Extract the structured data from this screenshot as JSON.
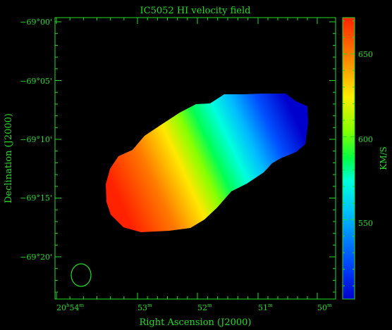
{
  "chart_data": {
    "type": "heatmap",
    "title": "IC5052   HI velocity field",
    "xlabel": "Right Ascension (J2000)",
    "ylabel": "Declination (J2000)",
    "colorbar_label": "KM/S",
    "x_ticks": [
      {
        "h": "20",
        "m": "54"
      },
      {
        "h": "",
        "m": "53"
      },
      {
        "h": "",
        "m": "52"
      },
      {
        "h": "",
        "m": "51"
      },
      {
        "h": "",
        "m": "50"
      }
    ],
    "y_ticks": [
      "−69°00'",
      "−69°05'",
      "−69°10'",
      "−69°15'",
      "−69°20'"
    ],
    "colorbar_ticks": [
      550,
      600,
      650
    ],
    "colorbar_range": [
      502,
      672
    ],
    "colormap": [
      "#0000cc",
      "#0044ff",
      "#00bbff",
      "#00ffdd",
      "#00ff44",
      "#88ff00",
      "#ffee00",
      "#ff8800",
      "#ff2200"
    ],
    "velocity_field": {
      "approaching_side_kms": 508,
      "receding_side_kms": 668,
      "systemic_kms": 590
    },
    "beam": "ellipse",
    "axis_color": "#22dd22"
  }
}
